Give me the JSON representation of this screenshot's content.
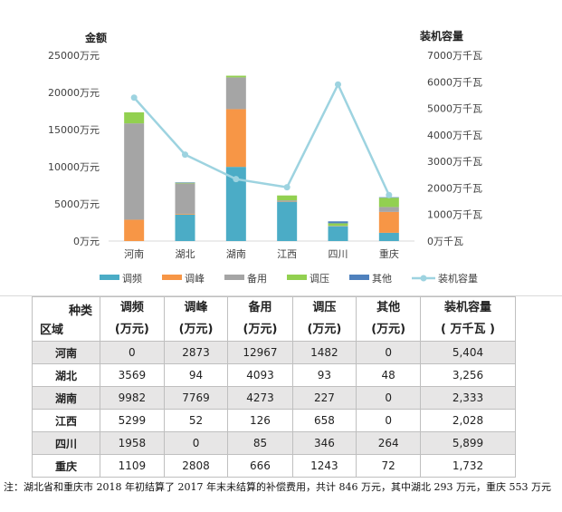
{
  "chart_data": {
    "type": "bar",
    "stacked": true,
    "categories": [
      "河南",
      "湖北",
      "湖南",
      "江西",
      "四川",
      "重庆"
    ],
    "series": [
      {
        "name": "调频",
        "values": [
          0,
          3569,
          9982,
          5299,
          1958,
          1109
        ],
        "color": "#4bacc6"
      },
      {
        "name": "调峰",
        "values": [
          2873,
          94,
          7769,
          52,
          0,
          2808
        ],
        "color": "#f79646"
      },
      {
        "name": "备用",
        "values": [
          12967,
          4093,
          4273,
          126,
          85,
          666
        ],
        "color": "#a5a5a5"
      },
      {
        "name": "调压",
        "values": [
          1482,
          93,
          227,
          658,
          346,
          1243
        ],
        "color": "#92d050"
      },
      {
        "name": "其他",
        "values": [
          0,
          48,
          0,
          0,
          264,
          72
        ],
        "color": "#4f81bd"
      }
    ],
    "line_series": {
      "name": "装机容量",
      "values": [
        5404,
        3256,
        2333,
        2028,
        5899,
        1732
      ],
      "color": "#9dd3e0"
    },
    "ylabel_left": "金额",
    "ylabel_right": "装机容量",
    "ylim_left": [
      0,
      25000
    ],
    "ylim_right": [
      0,
      7000
    ],
    "yticks_left": [
      "0万元",
      "5000万元",
      "10000万元",
      "15000万元",
      "20000万元",
      "25000万元"
    ],
    "yticks_right": [
      "0万千瓦",
      "1000万千瓦",
      "2000万千瓦",
      "3000万千瓦",
      "4000万千瓦",
      "5000万千瓦",
      "6000万千瓦",
      "7000万千瓦"
    ],
    "legend_position": "bottom",
    "grid": false
  },
  "table": {
    "corner_top": "种类",
    "corner_bottom": "区域",
    "headers": [
      {
        "l1": "调频",
        "l2": "(万元)"
      },
      {
        "l1": "调峰",
        "l2": "(万元)"
      },
      {
        "l1": "备用",
        "l2": "(万元)"
      },
      {
        "l1": "调压",
        "l2": "(万元)"
      },
      {
        "l1": "其他",
        "l2": "(万元)"
      },
      {
        "l1": "装机容量",
        "l2": "( 万千瓦 )"
      }
    ],
    "rows": [
      {
        "region": "河南",
        "cells": [
          "0",
          "2873",
          "12967",
          "1482",
          "0",
          "5,404"
        ]
      },
      {
        "region": "湖北",
        "cells": [
          "3569",
          "94",
          "4093",
          "93",
          "48",
          "3,256"
        ]
      },
      {
        "region": "湖南",
        "cells": [
          "9982",
          "7769",
          "4273",
          "227",
          "0",
          "2,333"
        ]
      },
      {
        "region": "江西",
        "cells": [
          "5299",
          "52",
          "126",
          "658",
          "0",
          "2,028"
        ]
      },
      {
        "region": "四川",
        "cells": [
          "1958",
          "0",
          "85",
          "346",
          "264",
          "5,899"
        ]
      },
      {
        "region": "重庆",
        "cells": [
          "1109",
          "2808",
          "666",
          "1243",
          "72",
          "1,732"
        ]
      }
    ]
  },
  "note": "注：湖北省和重庆市 2018 年初结算了 2017 年末未结算的补偿费用，共计 846 万元，其中湖北 293 万元，重庆 553 万元"
}
